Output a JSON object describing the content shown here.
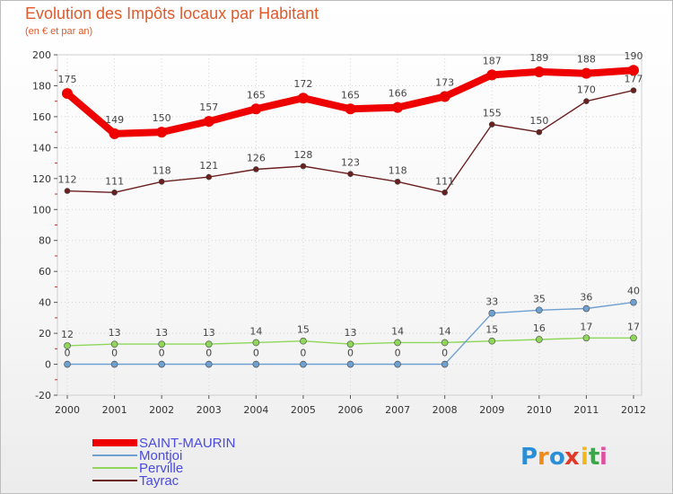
{
  "chart_data": {
    "type": "line",
    "title": "Evolution des Impôts locaux par Habitant",
    "subtitle": "(en € et par an)",
    "xlabel": "",
    "ylabel": "",
    "ylim": [
      -20,
      200
    ],
    "yticks": [
      "-20",
      "0",
      "20",
      "40",
      "60",
      "80",
      "100",
      "120",
      "140",
      "160",
      "180",
      "200"
    ],
    "x": [
      "2000",
      "2001",
      "2002",
      "2003",
      "2004",
      "2005",
      "2006",
      "2007",
      "2008",
      "2009",
      "2010",
      "2011",
      "2012"
    ],
    "grid": true,
    "legend_position": "bottom-left",
    "series": [
      {
        "key": "tayrac",
        "name": "Tayrac",
        "color": "#6b1f1f",
        "values": [
          112,
          111,
          118,
          121,
          126,
          128,
          123,
          118,
          111,
          155,
          150,
          170,
          177
        ],
        "labels": [
          "112",
          "111",
          "118",
          "121",
          "126",
          "128",
          "123",
          "118",
          "111",
          "155",
          "150",
          "170",
          "177"
        ]
      },
      {
        "key": "perville",
        "name": "Perville",
        "color": "#8fd65a",
        "values": [
          12,
          13,
          13,
          13,
          14,
          15,
          13,
          14,
          14,
          15,
          16,
          17,
          17
        ],
        "labels": [
          "12",
          "13",
          "13",
          "13",
          "14",
          "15",
          "13",
          "14",
          "14",
          "15",
          "16",
          "17",
          "17"
        ]
      },
      {
        "key": "montjoi",
        "name": "Montjoi",
        "color": "#6ea0d2",
        "values": [
          0,
          0,
          0,
          0,
          0,
          0,
          0,
          0,
          0,
          33,
          35,
          36,
          40
        ],
        "labels": [
          "0",
          "0",
          "0",
          "0",
          "0",
          "0",
          "0",
          "0",
          "0",
          "33",
          "35",
          "36",
          "40"
        ]
      },
      {
        "key": "saint_maurin",
        "name": "SAINT-MAURIN",
        "color": "#ee0000",
        "values": [
          175,
          149,
          150,
          157,
          165,
          172,
          165,
          166,
          173,
          187,
          189,
          188,
          190
        ],
        "labels": [
          "175",
          "149",
          "150",
          "157",
          "165",
          "172",
          "165",
          "166",
          "173",
          "187",
          "189",
          "188",
          "190"
        ]
      }
    ],
    "legend": [
      {
        "key": "saint_maurin",
        "name": "SAINT-MAURIN",
        "color": "#ee0000",
        "label_color": "#4a4adf"
      },
      {
        "key": "montjoi",
        "name": "Montjoi",
        "color": "#6ea0d2",
        "label_color": "#4a4adf"
      },
      {
        "key": "perville",
        "name": "Perville",
        "color": "#8fd65a",
        "label_color": "#4a4adf"
      },
      {
        "key": "tayrac",
        "name": "Tayrac",
        "color": "#6b1f1f",
        "label_color": "#4a4adf"
      }
    ]
  },
  "logo": {
    "text": "Proxiti",
    "letters": [
      "P",
      "r",
      "o",
      "x",
      "i",
      "t",
      "i"
    ],
    "colors": [
      "#2b8fd8",
      "#f08a1c",
      "#2b8fd8",
      "#e03a2a",
      "#f0b81c",
      "#3aa84a",
      "#e04fa0"
    ]
  }
}
